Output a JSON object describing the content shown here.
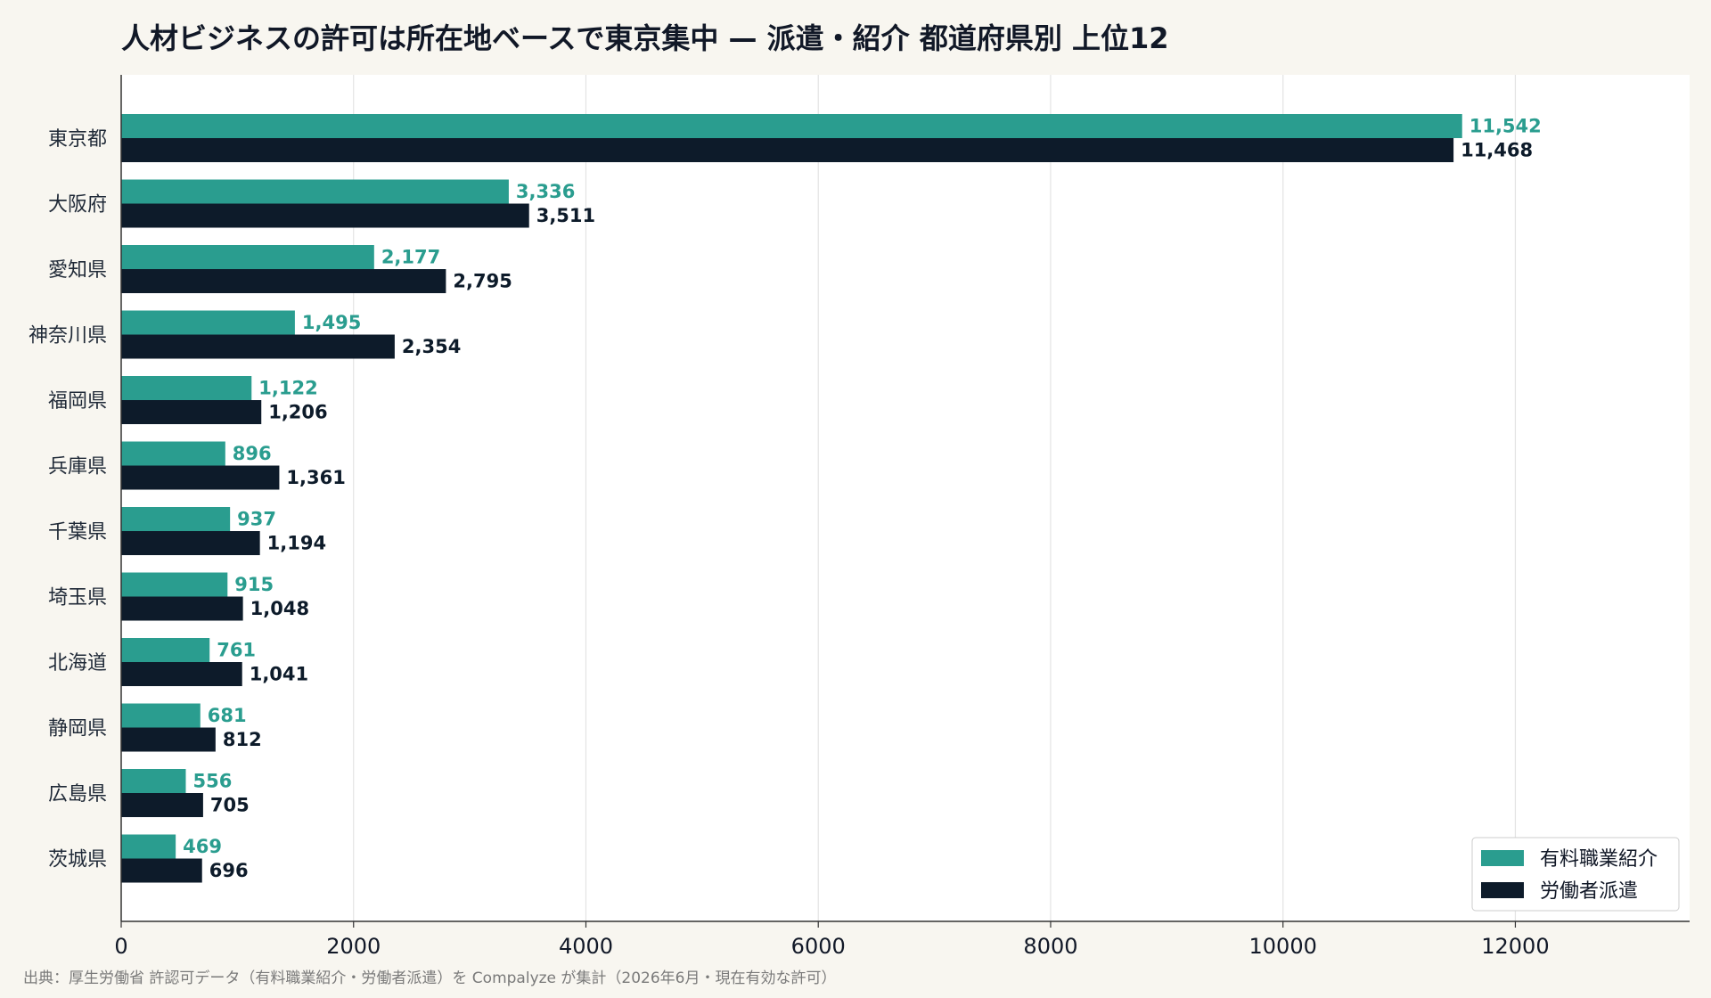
{
  "title": "人材ビジネスの許可は所在地ベースで東京集中 — 派遣・紹介 都道府県別 上位12",
  "source": "出典：厚生労働省 許認可データ（有料職業紹介・労働者派遣）を Compalyze が集計（2026年6月・現在有効な許可）",
  "chart_data": {
    "type": "bar",
    "orientation": "horizontal",
    "title": "人材ビジネスの許可は所在地ベースで東京集中 — 派遣・紹介 都道府県別 上位12",
    "categories": [
      "東京都",
      "大阪府",
      "愛知県",
      "神奈川県",
      "福岡県",
      "兵庫県",
      "千葉県",
      "埼玉県",
      "北海道",
      "静岡県",
      "広島県",
      "茨城県"
    ],
    "series": [
      {
        "name": "有料職業紹介",
        "color": "#2a9d8f",
        "values": [
          11542,
          3336,
          2177,
          1495,
          1122,
          896,
          937,
          915,
          761,
          681,
          556,
          469
        ],
        "labels": [
          "11,542",
          "3,336",
          "2,177",
          "1,495",
          "1,122",
          "896",
          "937",
          "915",
          "761",
          "681",
          "556",
          "469"
        ]
      },
      {
        "name": "労働者派遣",
        "color": "#0d1b2a",
        "values": [
          11468,
          3511,
          2795,
          2354,
          1206,
          1361,
          1194,
          1048,
          1041,
          812,
          705,
          696
        ],
        "labels": [
          "11,468",
          "3,511",
          "2,795",
          "2,354",
          "1,206",
          "1,361",
          "1,194",
          "1,048",
          "1,041",
          "812",
          "705",
          "696"
        ]
      }
    ],
    "xlim": [
      0,
      13500
    ],
    "xticks": [
      0,
      2000,
      4000,
      6000,
      8000,
      10000,
      12000
    ],
    "xtick_labels": [
      "0",
      "2000",
      "4000",
      "6000",
      "8000",
      "10000",
      "12000"
    ],
    "grid": "vertical",
    "legend_position": "bottom-right"
  }
}
